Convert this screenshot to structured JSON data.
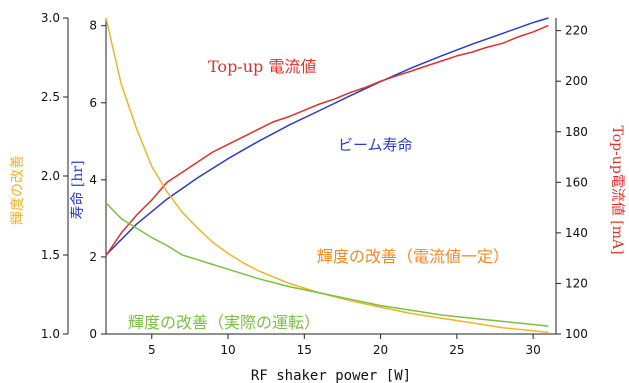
{
  "chart_data": {
    "type": "line",
    "xlabel": "RF shaker power [W]",
    "xlim": [
      2,
      31.5
    ],
    "x_ticks": [
      5,
      10,
      15,
      20,
      25,
      30
    ],
    "axes": {
      "brightness": {
        "label": "輝度の改善",
        "ylim": [
          1.0,
          3.0
        ],
        "ticks": [
          1.0,
          1.5,
          2.0,
          2.5,
          3.0
        ],
        "color": "#f0b429"
      },
      "lifetime": {
        "label": "寿命 [hr]",
        "ylim": [
          0,
          8.2
        ],
        "ticks": [
          0,
          2,
          4,
          6,
          8
        ],
        "color": "#2a3cc8"
      },
      "current": {
        "label": "Top-up電流値 [mA]",
        "ylim": [
          100,
          225
        ],
        "ticks": [
          100,
          120,
          140,
          160,
          180,
          200,
          220
        ],
        "color": "#e0302a"
      }
    },
    "series": [
      {
        "name": "ビーム寿命",
        "axis": "lifetime",
        "color": "#2a3cc8",
        "x": [
          2,
          4,
          6,
          8,
          10,
          12,
          14,
          16,
          18,
          20,
          22,
          24,
          26,
          28,
          30,
          31
        ],
        "y": [
          2.05,
          2.85,
          3.5,
          4.05,
          4.55,
          5.0,
          5.42,
          5.8,
          6.18,
          6.55,
          6.9,
          7.22,
          7.52,
          7.8,
          8.08,
          8.2
        ]
      },
      {
        "name": "Top-up 電流値",
        "axis": "current",
        "color": "#e0302a",
        "x": [
          2,
          3,
          4,
          5,
          6,
          7,
          8,
          9,
          10,
          11,
          12,
          13,
          14,
          15,
          16,
          17,
          18,
          19,
          20,
          21,
          22,
          23,
          24,
          25,
          26,
          27,
          28,
          29,
          30,
          31
        ],
        "y": [
          131,
          140,
          147,
          153,
          160,
          164,
          168,
          172,
          175,
          178,
          181,
          184,
          186,
          188.5,
          191,
          193,
          195.5,
          197.5,
          200,
          202,
          204,
          206,
          208,
          210,
          211.5,
          213.5,
          215,
          217.5,
          219.5,
          222
        ]
      },
      {
        "name": "輝度の改善（電流値一定）",
        "axis": "brightness",
        "color": "#f0b429",
        "x": [
          2,
          3,
          4,
          5,
          6,
          7,
          8,
          9,
          10,
          11,
          12,
          14,
          16,
          18,
          20,
          22,
          24,
          26,
          28,
          30,
          31
        ],
        "y": [
          3.0,
          2.58,
          2.3,
          2.06,
          1.9,
          1.77,
          1.67,
          1.58,
          1.51,
          1.45,
          1.4,
          1.32,
          1.26,
          1.21,
          1.17,
          1.13,
          1.1,
          1.07,
          1.04,
          1.02,
          1.01
        ]
      },
      {
        "name": "輝度の改善（実際の運転）",
        "axis": "brightness",
        "color": "#7ac142",
        "x": [
          2,
          3,
          4,
          5,
          6,
          7,
          8,
          9,
          10,
          12,
          14,
          16,
          18,
          20,
          22,
          24,
          26,
          28,
          30,
          31
        ],
        "y": [
          1.83,
          1.73,
          1.67,
          1.61,
          1.56,
          1.5,
          1.47,
          1.44,
          1.41,
          1.35,
          1.3,
          1.26,
          1.22,
          1.18,
          1.15,
          1.12,
          1.1,
          1.08,
          1.06,
          1.05
        ]
      }
    ]
  }
}
